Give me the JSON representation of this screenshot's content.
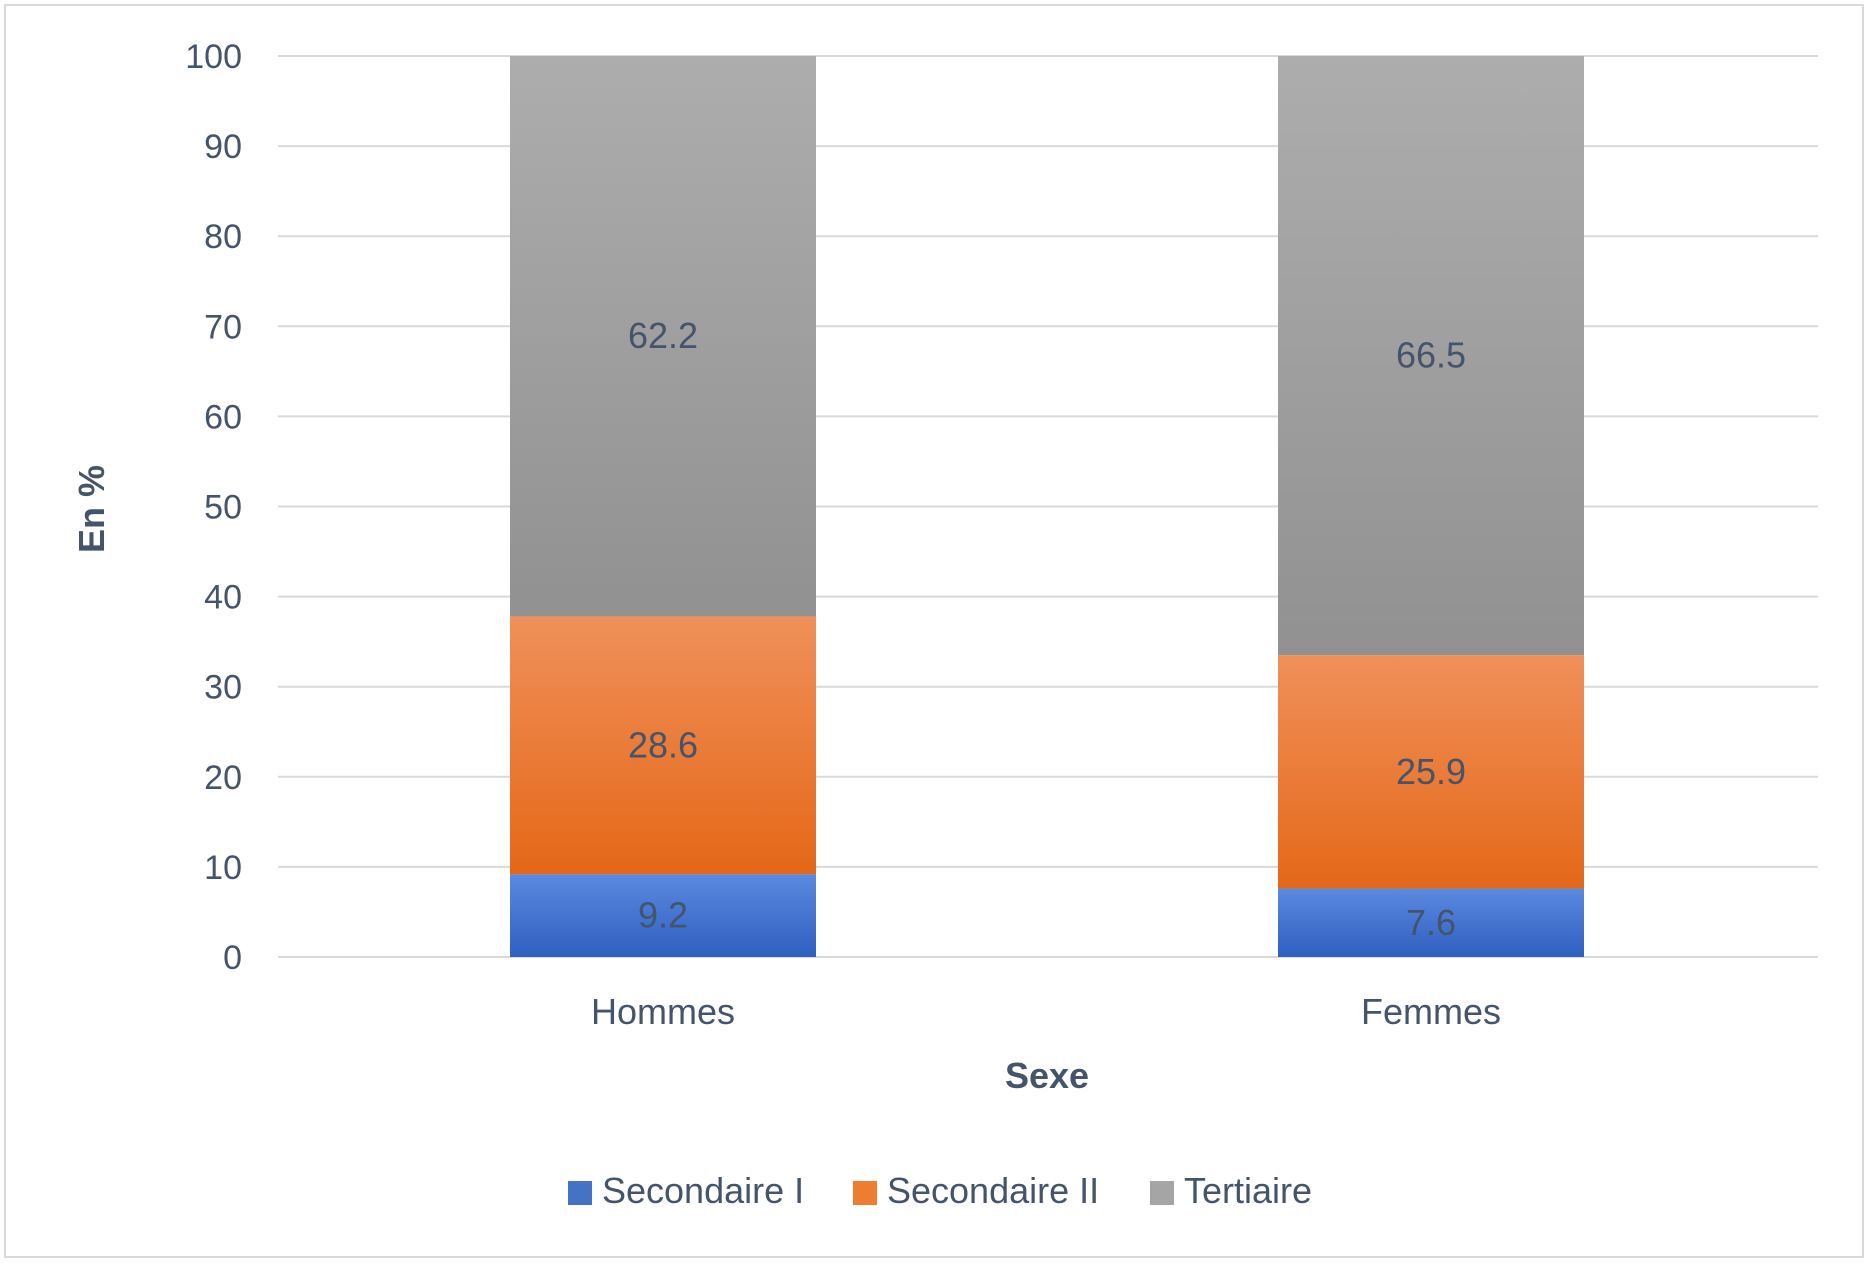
{
  "chart_data": {
    "type": "bar",
    "stacked": true,
    "title": "",
    "xlabel": "Sexe",
    "ylabel": "En %",
    "ylim": [
      0,
      100
    ],
    "yticks": [
      0,
      10,
      20,
      30,
      40,
      50,
      60,
      70,
      80,
      90,
      100
    ],
    "grid": true,
    "legend_position": "bottom",
    "categories": [
      "Hommes",
      "Femmes"
    ],
    "series": [
      {
        "name": "Secondaire I",
        "values": [
          9.2,
          7.6
        ],
        "color": "#4472c4"
      },
      {
        "name": "Secondaire II",
        "values": [
          28.6,
          25.9
        ],
        "color": "#ed7d31"
      },
      {
        "name": "Tertiaire",
        "values": [
          62.2,
          66.5
        ],
        "color": "#a5a5a5"
      }
    ],
    "data_labels": [
      [
        "9.2",
        "7.6"
      ],
      [
        "28.6",
        "25.9"
      ],
      [
        "62.2",
        "66.5"
      ]
    ]
  }
}
